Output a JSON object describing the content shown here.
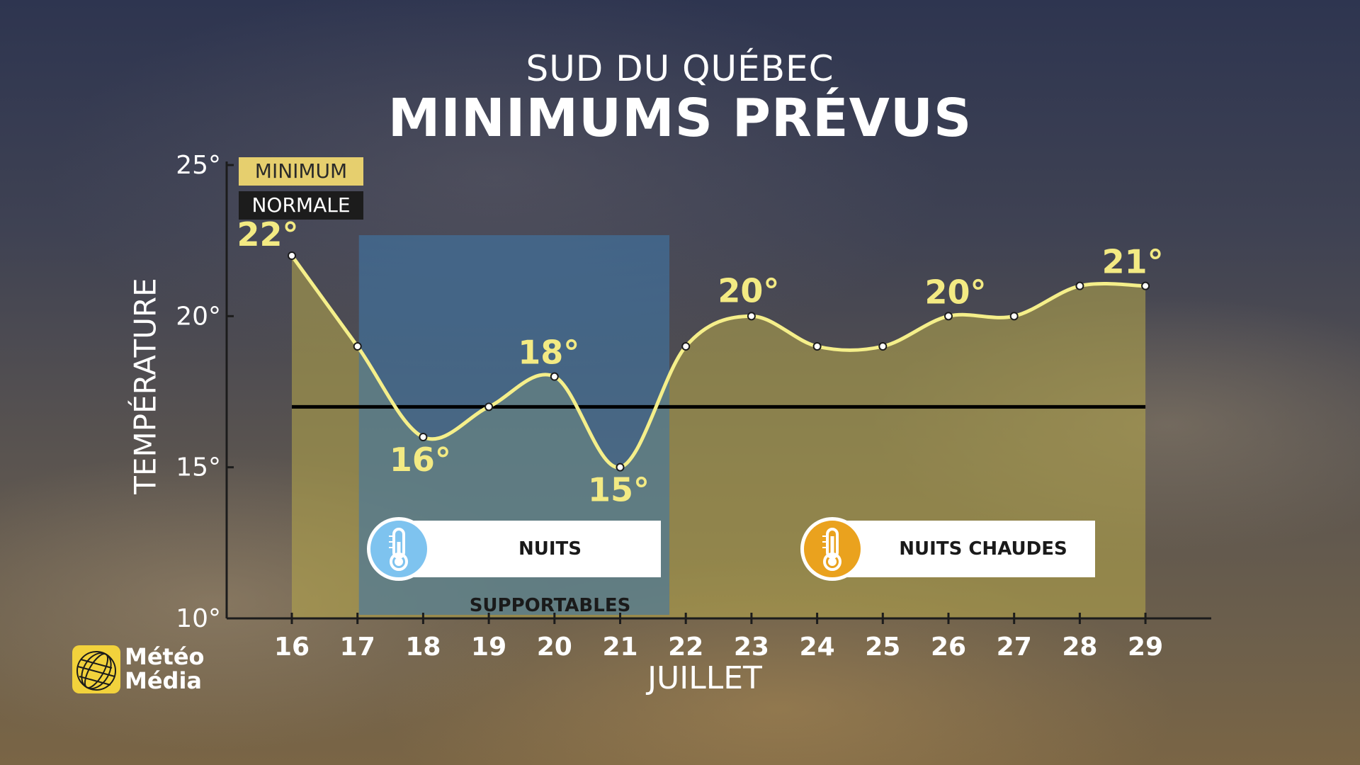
{
  "title": {
    "top": "SUD DU QUÉBEC",
    "main": "MINIMUMS PRÉVUS"
  },
  "legend": {
    "minimum": "MINIMUM",
    "normale": "NORMALE"
  },
  "badges": {
    "cool": "NUITS SUPPORTABLES",
    "warm": "NUITS CHAUDES"
  },
  "logo": {
    "line1": "Météo",
    "line2": "Média"
  },
  "colors": {
    "line": "#f5ef8a",
    "fill": "#b8a94a",
    "normal_line": "#000000",
    "band": "#3f76a6",
    "legend_min_bg": "#e6cf6e",
    "legend_norm_bg": "#1c1c1c",
    "cool_icon": "#7ec3ef",
    "warm_icon": "#eaa21e"
  },
  "icons": [
    "thermometer-cool-icon",
    "thermometer-warm-icon",
    "meteomedia-globe-icon"
  ],
  "chart_data": {
    "type": "area",
    "title": "MINIMUMS PRÉVUS",
    "subtitle": "SUD DU QUÉBEC",
    "xlabel": "JUILLET",
    "ylabel": "TEMPÉRATURE",
    "x": [
      16,
      17,
      18,
      19,
      20,
      21,
      22,
      23,
      24,
      25,
      26,
      27,
      28,
      29
    ],
    "ylim": [
      10,
      25
    ],
    "yticks": [
      "10°",
      "15°",
      "20°",
      "25°"
    ],
    "series": [
      {
        "name": "MINIMUM",
        "values": [
          22,
          19,
          16,
          17,
          18,
          15,
          19,
          20,
          19,
          19,
          20,
          20,
          21,
          21
        ]
      },
      {
        "name": "NORMALE",
        "values": [
          17,
          17,
          17,
          17,
          17,
          17,
          17,
          17,
          17,
          17,
          17,
          17,
          17,
          17
        ]
      }
    ],
    "data_labels": [
      {
        "x": 16,
        "text": "22°"
      },
      {
        "x": 18,
        "text": "16°"
      },
      {
        "x": 20,
        "text": "18°"
      },
      {
        "x": 21,
        "text": "15°"
      },
      {
        "x": 23,
        "text": "20°"
      },
      {
        "x": 26,
        "text": "20°"
      },
      {
        "x": 29,
        "text": "21°"
      }
    ],
    "highlight_range": [
      17,
      21.75
    ],
    "grid": false,
    "legend": "top-left"
  }
}
